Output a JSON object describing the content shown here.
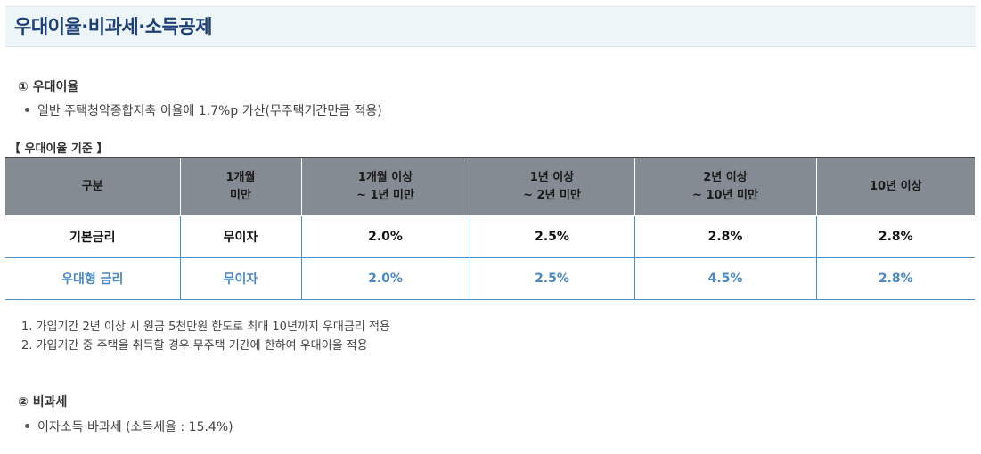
{
  "title": "우대이율·비과세·소득공제",
  "section1": {
    "heading": "① 우대이율",
    "bullet": "일반 주택청약종합저축 이율에 1.7%p 가산(무주택기간만큼 적용)"
  },
  "table": {
    "caption": "【 우대이율 기준 】",
    "headers": [
      [
        "구분",
        ""
      ],
      [
        "1개월",
        "미만"
      ],
      [
        "1개월 이상",
        "~ 1년 미만"
      ],
      [
        "1년 이상",
        "~ 2년 미만"
      ],
      [
        "2년 이상",
        "~ 10년 미만"
      ],
      [
        "10년 이상",
        ""
      ]
    ],
    "rows": [
      [
        "기본금리",
        "무이자",
        "2.0%",
        "2.5%",
        "2.8%",
        "2.8%"
      ],
      [
        "우대형 금리",
        "무이자",
        "2.0%",
        "2.5%",
        "4.5%",
        "2.8%"
      ]
    ]
  },
  "notes": [
    "1. 가입기간 2년 이상 시 원금 5천만원 한도로 최대 10년까지 우대금리 적용",
    "2. 가입기간 중 주택을 취득할 경우 무주택 기간에 한하여 우대이율 적용"
  ],
  "section2": {
    "heading": "② 비과세",
    "bullet": "이자소득 바과세 (소득세율 : 15.4%)"
  },
  "colors": {
    "title": "#1d3f73",
    "header_bg": "#858b93",
    "preferred_rate": "#4a88c6"
  }
}
